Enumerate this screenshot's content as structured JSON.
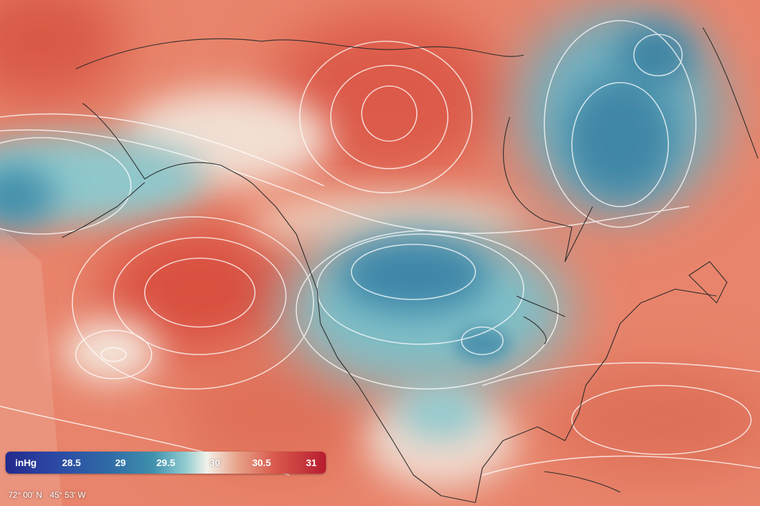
{
  "legend": {
    "unit": "inHg",
    "ticks": [
      "28.5",
      "29",
      "29.5",
      "30",
      "30.5",
      "31"
    ]
  },
  "coordinates": {
    "latitude": "72° 00′ N",
    "longitude": "45° 53′ W"
  },
  "colors": {
    "high_pressure": "#d9594c",
    "neutral": "#f3f1ea",
    "low_pressure": "#3f90ad",
    "deep_low": "#2f6aa6",
    "contour": "#ffffff",
    "coastline": "#2a2a2a"
  },
  "map": {
    "layer": "sea level pressure",
    "region": "North America and Pacific"
  }
}
